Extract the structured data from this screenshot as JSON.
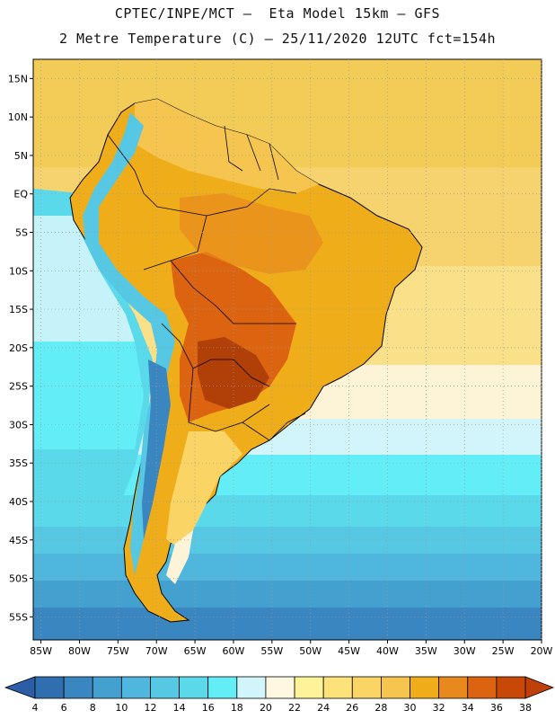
{
  "header": {
    "line1": "CPTEC/INPE/MCT –  Eta Model 15km – GFS",
    "line2": "2 Metre Temperature (C) – 25/11/2020 12UTC fct=154h"
  },
  "axes": {
    "lat_labels": [
      "15N",
      "10N",
      "5N",
      "EQ",
      "5S",
      "10S",
      "15S",
      "20S",
      "25S",
      "30S",
      "35S",
      "40S",
      "45S",
      "50S",
      "55S"
    ],
    "lat_values": [
      15,
      10,
      5,
      0,
      -5,
      -10,
      -15,
      -20,
      -25,
      -30,
      -35,
      -40,
      -45,
      -50,
      -55
    ],
    "lon_labels": [
      "85W",
      "80W",
      "75W",
      "70W",
      "65W",
      "60W",
      "55W",
      "50W",
      "45W",
      "40W",
      "35W",
      "30W",
      "25W",
      "20W"
    ],
    "lon_values": [
      -85,
      -80,
      -75,
      -70,
      -65,
      -60,
      -55,
      -50,
      -45,
      -40,
      -35,
      -30,
      -25,
      -20
    ],
    "lat_range": [
      -58,
      17.5
    ],
    "lon_range": [
      -86,
      -20
    ]
  },
  "colorbar": {
    "labels": [
      "4",
      "6",
      "8",
      "10",
      "12",
      "14",
      "16",
      "18",
      "20",
      "22",
      "24",
      "26",
      "28",
      "30",
      "32",
      "34",
      "36",
      "38"
    ],
    "colors": [
      "#2f6fb0",
      "#3a86c0",
      "#44a0cf",
      "#4fb6dd",
      "#56c8e4",
      "#5ad9eb",
      "#63eef7",
      "#d2f5fb",
      "#fff8e0",
      "#fff39a",
      "#fde27a",
      "#fbd466",
      "#f6c550",
      "#f0ad1a",
      "#e8891e",
      "#dc6410",
      "#c84808"
    ],
    "left_arrow_color": "#2b5ea6",
    "right_arrow_color": "#c0400a"
  },
  "palette": {
    "ocean_north": "#f3cc58",
    "ocean_mid": "#fdf3d6",
    "ocean_cool": "#63eef7",
    "ocean_south": "#3a86c0",
    "land_warm": "#f0ad1a",
    "land_hot": "#dc6410",
    "land_hottest": "#b04008",
    "andes": "#56c8e4",
    "coast_line": "#000000"
  }
}
